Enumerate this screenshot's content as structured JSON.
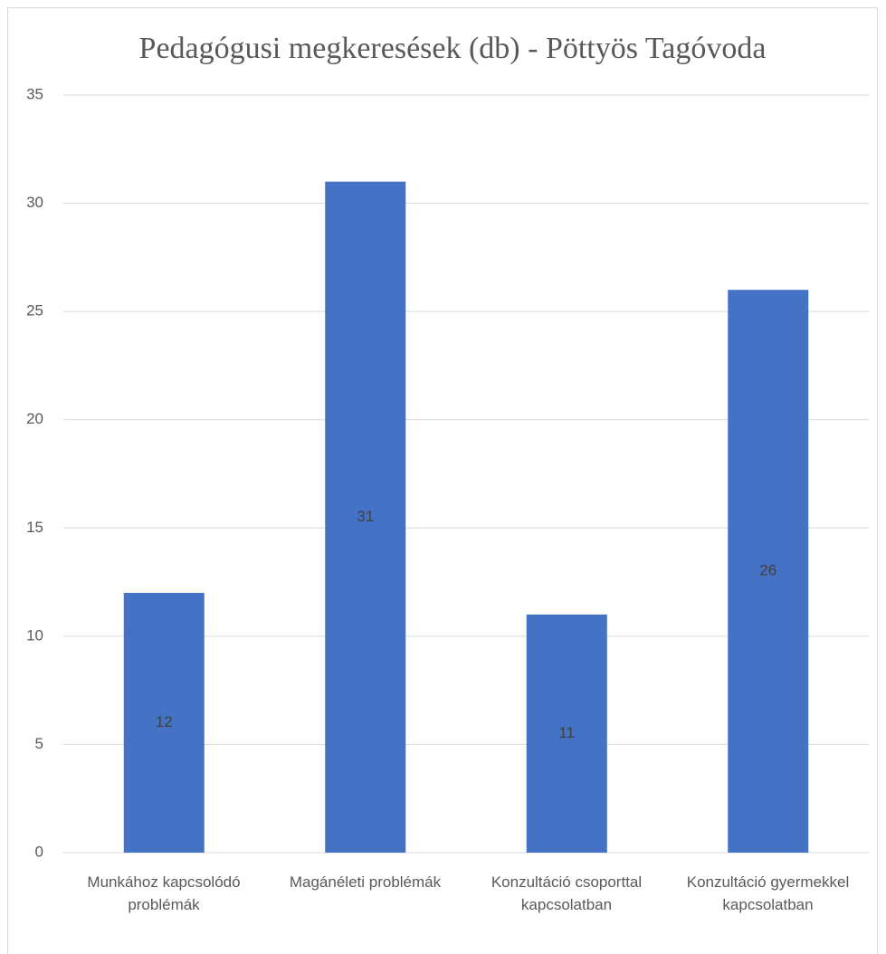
{
  "chart_data": {
    "type": "bar",
    "title": "Pedagógusi megkeresések (db) - Pöttyös Tagóvoda",
    "categories": [
      "Munkához kapcsolódó problémák",
      "Magánéleti problémák",
      "Konzultáció csoporttal kapcsolatban",
      "Konzultáció gyermekkel kapcsolatban"
    ],
    "values": [
      12,
      31,
      11,
      26
    ],
    "color": "#4472c4",
    "ylim": [
      0,
      35
    ],
    "yticks": [
      0,
      5,
      10,
      15,
      20,
      25,
      30,
      35
    ],
    "grid": true
  }
}
